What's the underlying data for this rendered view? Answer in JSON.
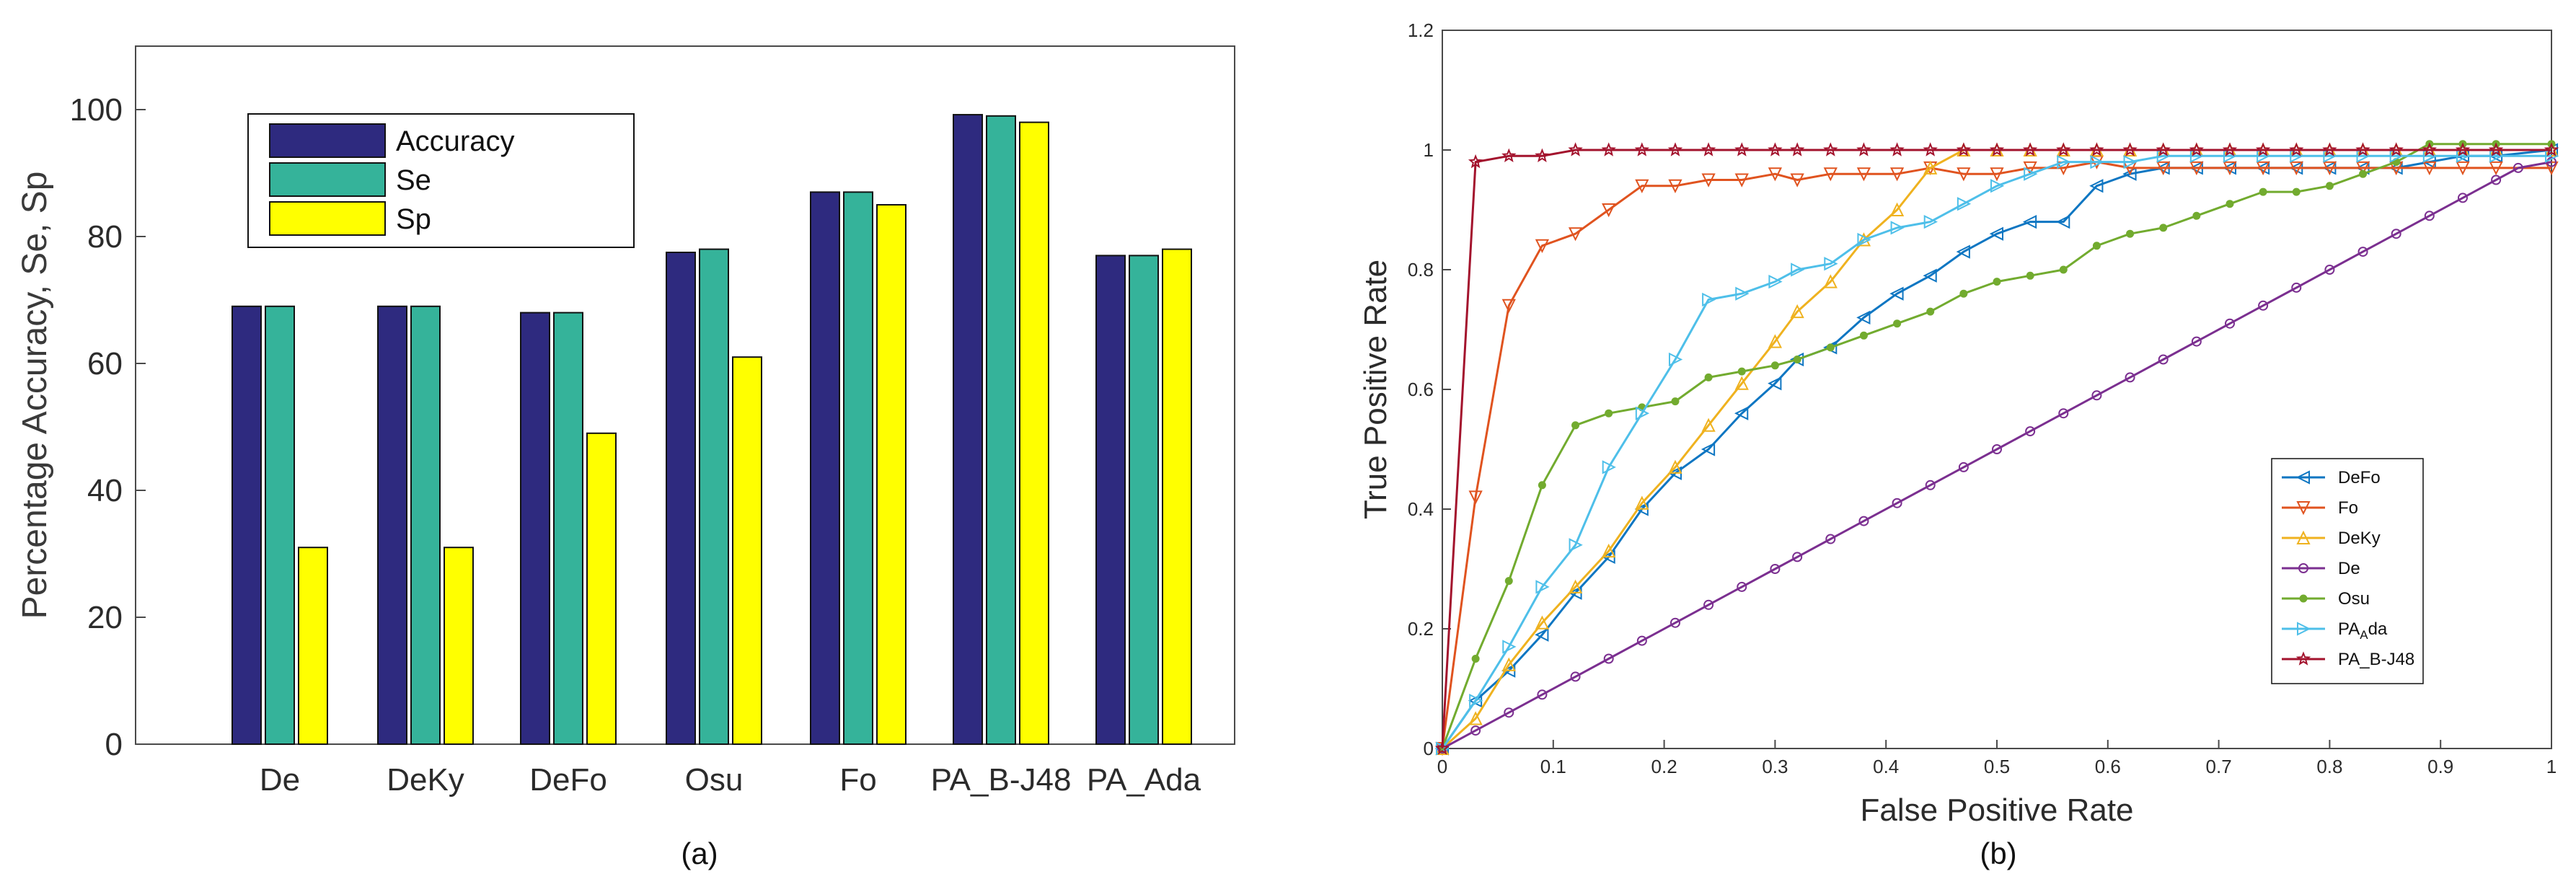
{
  "colors": {
    "accuracy": "#2e2a7f",
    "se": "#35b39a",
    "sp": "#ffff00",
    "DeFo": "#0e76c2",
    "Fo": "#e0531f",
    "DeKy": "#efb21f",
    "De": "#7b2f90",
    "Osu": "#72ab2f",
    "PA_Ada": "#4ebfe9",
    "PA_B-J48": "#a3132d"
  },
  "captions": {
    "a": "(a)",
    "b": "(b)"
  },
  "chart_data": [
    {
      "type": "bar",
      "title": "",
      "xlabel": "",
      "ylabel": "Percentage Accuracy, Se, Sp",
      "ylim": [
        0,
        110
      ],
      "yticks": [
        "0",
        "20",
        "40",
        "60",
        "80",
        "100"
      ],
      "ytick_values": [
        0,
        20,
        40,
        60,
        80,
        100
      ],
      "categories": [
        "De",
        "DeKy",
        "DeFo",
        "Osu",
        "Fo",
        "PA_B-J48",
        "PA_Ada"
      ],
      "legend_position": "top-left",
      "series": [
        {
          "name": "Accuracy",
          "color_key": "accuracy",
          "values": [
            69,
            69,
            68,
            77.5,
            87,
            99.2,
            77
          ]
        },
        {
          "name": "Se",
          "color_key": "se",
          "values": [
            69,
            69,
            68,
            78,
            87,
            99,
            77
          ]
        },
        {
          "name": "Sp",
          "color_key": "sp",
          "values": [
            31,
            31,
            49,
            61,
            85,
            98,
            78
          ]
        }
      ]
    },
    {
      "type": "line",
      "title": "",
      "xlabel": "False Positive Rate",
      "ylabel": "True Positive Rate",
      "xlim": [
        0,
        1
      ],
      "ylim": [
        0,
        1.2
      ],
      "xticks": [
        "0",
        "0.1",
        "0.2",
        "0.3",
        "0.4",
        "0.5",
        "0.6",
        "0.7",
        "0.8",
        "0.9",
        "1"
      ],
      "xtick_values": [
        0,
        0.1,
        0.2,
        0.3,
        0.4,
        0.5,
        0.6,
        0.7,
        0.8,
        0.9,
        1
      ],
      "yticks": [
        "0",
        "0.2",
        "0.4",
        "0.6",
        "0.8",
        "1",
        "1.2"
      ],
      "ytick_values": [
        0,
        0.2,
        0.4,
        0.6,
        0.8,
        1,
        1.2
      ],
      "legend_position": "bottom-right",
      "series": [
        {
          "name": "DeFo",
          "name_main": "DeFo",
          "name_sub": "",
          "name_rest": "",
          "color_key": "DeFo",
          "marker": "triangle-left",
          "x": [
            0,
            0.03,
            0.06,
            0.09,
            0.12,
            0.15,
            0.18,
            0.21,
            0.24,
            0.27,
            0.3,
            0.32,
            0.35,
            0.38,
            0.41,
            0.44,
            0.47,
            0.5,
            0.53,
            0.56,
            0.59,
            0.62,
            0.65,
            0.68,
            0.71,
            0.74,
            0.77,
            0.8,
            0.83,
            0.86,
            0.89,
            0.92,
            0.95,
            1
          ],
          "y": [
            0,
            0.08,
            0.13,
            0.19,
            0.26,
            0.32,
            0.4,
            0.46,
            0.5,
            0.56,
            0.61,
            0.65,
            0.67,
            0.72,
            0.76,
            0.79,
            0.83,
            0.86,
            0.88,
            0.88,
            0.94,
            0.96,
            0.97,
            0.97,
            0.97,
            0.97,
            0.97,
            0.97,
            0.97,
            0.97,
            0.98,
            0.99,
            0.99,
            1
          ]
        },
        {
          "name": "Fo",
          "name_main": "Fo",
          "name_sub": "",
          "name_rest": "",
          "color_key": "Fo",
          "marker": "triangle-down",
          "x": [
            0,
            0.03,
            0.06,
            0.09,
            0.12,
            0.15,
            0.18,
            0.21,
            0.24,
            0.27,
            0.3,
            0.32,
            0.35,
            0.38,
            0.41,
            0.44,
            0.47,
            0.5,
            0.53,
            0.56,
            0.59,
            0.62,
            0.65,
            0.68,
            0.71,
            0.74,
            0.77,
            0.8,
            0.83,
            0.86,
            0.89,
            0.92,
            0.95,
            1
          ],
          "y": [
            0,
            0.42,
            0.74,
            0.84,
            0.86,
            0.9,
            0.94,
            0.94,
            0.95,
            0.95,
            0.96,
            0.95,
            0.96,
            0.96,
            0.96,
            0.97,
            0.96,
            0.96,
            0.97,
            0.97,
            0.98,
            0.97,
            0.97,
            0.97,
            0.97,
            0.97,
            0.97,
            0.97,
            0.97,
            0.97,
            0.97,
            0.97,
            0.97,
            0.97
          ]
        },
        {
          "name": "DeKy",
          "name_main": "DeKy",
          "name_sub": "",
          "name_rest": "",
          "color_key": "DeKy",
          "marker": "triangle-up",
          "x": [
            0,
            0.03,
            0.06,
            0.09,
            0.12,
            0.15,
            0.18,
            0.21,
            0.24,
            0.27,
            0.3,
            0.32,
            0.35,
            0.38,
            0.41,
            0.44,
            0.47,
            0.5,
            0.53,
            0.56,
            0.59,
            0.62,
            0.65,
            0.68,
            0.71,
            0.74,
            0.77,
            0.8,
            0.83,
            0.86,
            0.89,
            0.92,
            0.95,
            1
          ],
          "y": [
            0,
            0.05,
            0.14,
            0.21,
            0.27,
            0.33,
            0.41,
            0.47,
            0.54,
            0.61,
            0.68,
            0.73,
            0.78,
            0.85,
            0.9,
            0.97,
            1,
            1,
            1,
            1,
            1,
            1,
            1,
            1,
            1,
            1,
            1,
            1,
            1,
            1,
            1,
            1,
            1,
            1
          ]
        },
        {
          "name": "De",
          "name_main": "De",
          "name_sub": "",
          "name_rest": "",
          "color_key": "De",
          "marker": "circle",
          "x": [
            0,
            0.03,
            0.06,
            0.09,
            0.12,
            0.15,
            0.18,
            0.21,
            0.24,
            0.27,
            0.3,
            0.32,
            0.35,
            0.38,
            0.41,
            0.44,
            0.47,
            0.5,
            0.53,
            0.56,
            0.59,
            0.62,
            0.65,
            0.68,
            0.71,
            0.74,
            0.77,
            0.8,
            0.83,
            0.86,
            0.89,
            0.92,
            0.95,
            0.97,
            1
          ],
          "y": [
            0,
            0.03,
            0.06,
            0.09,
            0.12,
            0.15,
            0.18,
            0.21,
            0.24,
            0.27,
            0.3,
            0.32,
            0.35,
            0.38,
            0.41,
            0.44,
            0.47,
            0.5,
            0.53,
            0.56,
            0.59,
            0.62,
            0.65,
            0.68,
            0.71,
            0.74,
            0.77,
            0.8,
            0.83,
            0.86,
            0.89,
            0.92,
            0.95,
            0.97,
            0.98
          ]
        },
        {
          "name": "Osu",
          "name_main": "Osu",
          "name_sub": "",
          "name_rest": "",
          "color_key": "Osu",
          "marker": "dot",
          "x": [
            0,
            0.03,
            0.06,
            0.09,
            0.12,
            0.15,
            0.18,
            0.21,
            0.24,
            0.27,
            0.3,
            0.32,
            0.35,
            0.38,
            0.41,
            0.44,
            0.47,
            0.5,
            0.53,
            0.56,
            0.59,
            0.62,
            0.65,
            0.68,
            0.71,
            0.74,
            0.77,
            0.8,
            0.83,
            0.86,
            0.89,
            0.92,
            0.95,
            1
          ],
          "y": [
            0,
            0.15,
            0.28,
            0.44,
            0.54,
            0.56,
            0.57,
            0.58,
            0.62,
            0.63,
            0.64,
            0.65,
            0.67,
            0.69,
            0.71,
            0.73,
            0.76,
            0.78,
            0.79,
            0.8,
            0.84,
            0.86,
            0.87,
            0.89,
            0.91,
            0.93,
            0.93,
            0.94,
            0.96,
            0.98,
            1.01,
            1.01,
            1.01,
            1.01
          ]
        },
        {
          "name": "PA_Ada",
          "name_main": "PA",
          "name_sub": "A",
          "name_rest": "da",
          "color_key": "PA_Ada",
          "marker": "triangle-right",
          "x": [
            0,
            0.03,
            0.06,
            0.09,
            0.12,
            0.15,
            0.18,
            0.21,
            0.24,
            0.27,
            0.3,
            0.32,
            0.35,
            0.38,
            0.41,
            0.44,
            0.47,
            0.5,
            0.53,
            0.56,
            0.59,
            0.62,
            0.65,
            0.68,
            0.71,
            0.74,
            0.77,
            0.8,
            0.83,
            0.86,
            0.89,
            0.92,
            0.95,
            1
          ],
          "y": [
            0,
            0.08,
            0.17,
            0.27,
            0.34,
            0.47,
            0.56,
            0.65,
            0.75,
            0.76,
            0.78,
            0.8,
            0.81,
            0.85,
            0.87,
            0.88,
            0.91,
            0.94,
            0.96,
            0.98,
            0.98,
            0.98,
            0.99,
            0.99,
            0.99,
            0.99,
            0.99,
            0.99,
            0.99,
            0.99,
            0.99,
            0.99,
            0.99,
            0.99
          ]
        },
        {
          "name": "PA_B-J48",
          "name_main": "PA_B-J48",
          "name_sub": "",
          "name_rest": "",
          "color_key": "PA_B-J48",
          "marker": "star",
          "x": [
            0,
            0.03,
            0.06,
            0.09,
            0.12,
            0.15,
            0.18,
            0.21,
            0.24,
            0.27,
            0.3,
            0.32,
            0.35,
            0.38,
            0.41,
            0.44,
            0.47,
            0.5,
            0.53,
            0.56,
            0.59,
            0.62,
            0.65,
            0.68,
            0.71,
            0.74,
            0.77,
            0.8,
            0.83,
            0.86,
            0.89,
            0.92,
            0.95,
            1
          ],
          "y": [
            0,
            0.98,
            0.99,
            0.99,
            1,
            1,
            1,
            1,
            1,
            1,
            1,
            1,
            1,
            1,
            1,
            1,
            1,
            1,
            1,
            1,
            1,
            1,
            1,
            1,
            1,
            1,
            1,
            1,
            1,
            1,
            1,
            1,
            1,
            1
          ]
        }
      ]
    }
  ]
}
